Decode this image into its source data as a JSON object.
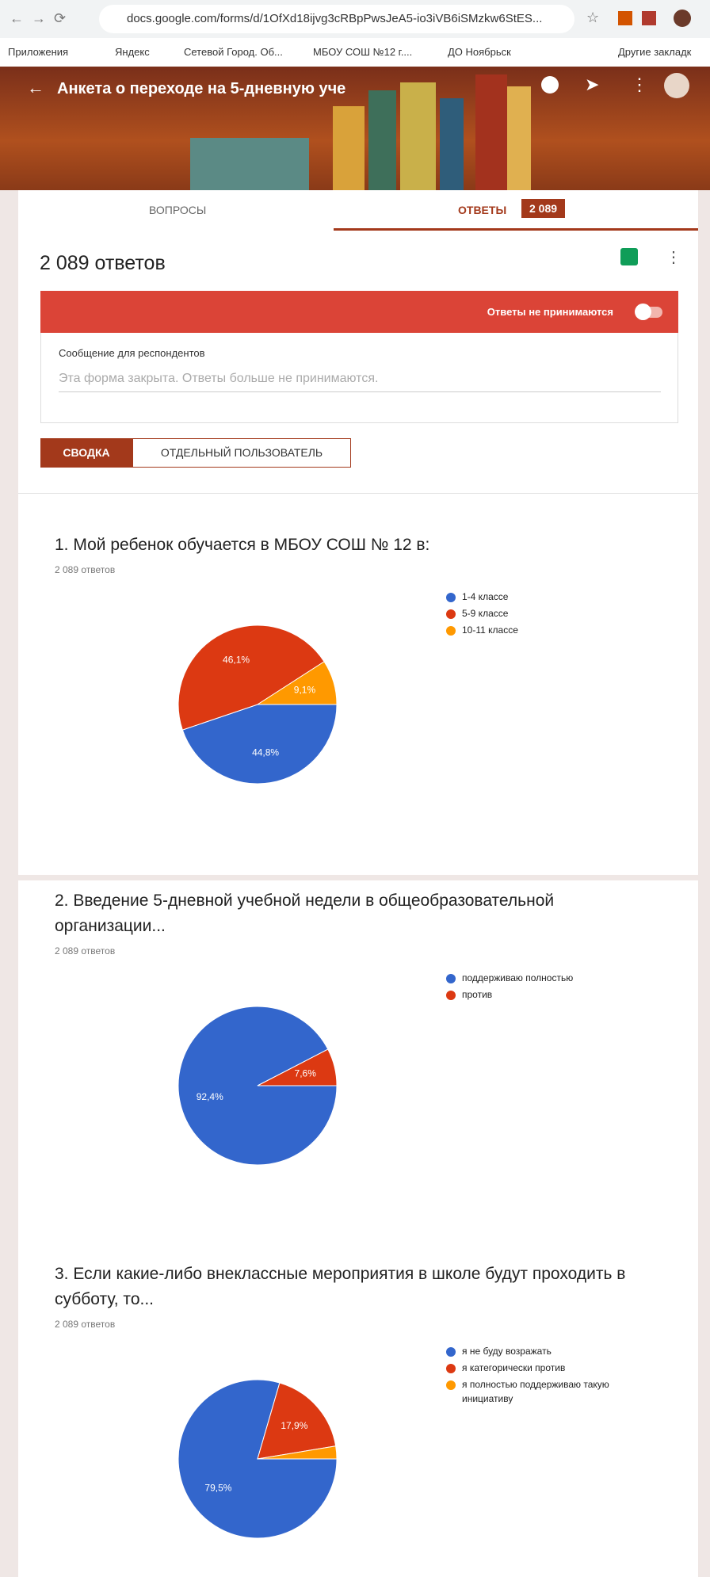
{
  "browser": {
    "url": "docs.google.com/forms/d/1OfXd18ijvg3cRBpPwsJeA5-io3iVB6iSMzkw6StES...",
    "bookmarks": [
      "Приложения",
      "Яндекс",
      "Сетевой Город. Об...",
      "МБОУ СОШ №12 г....",
      "ДО Ноябрьск",
      "Другие закладк"
    ]
  },
  "header": {
    "title": "Анкета о переходе на 5-дневную уче"
  },
  "tabs": {
    "questions": "ВОПРОСЫ",
    "responses": "ОТВЕТЫ",
    "badge": "2 089"
  },
  "summary": {
    "count": "2 089 ответов",
    "banner": "Ответы не принимаются",
    "message_label": "Сообщение для респондентов",
    "message": "Эта форма закрыта. Ответы больше не принимаются.",
    "buttons": [
      "СВОДКА",
      "ОТДЕЛЬНЫЙ ПОЛЬЗОВАТЕЛЬ"
    ]
  },
  "chart_data": [
    {
      "type": "pie",
      "title": "1. Мой ребенок обучается в МБОУ СОШ № 12 в:",
      "subtitle": "2 089 ответов",
      "categories": [
        "1-4 классе",
        "5-9 классе",
        "10-11 классе"
      ],
      "values": [
        44.8,
        46.1,
        9.1
      ],
      "value_labels": [
        "44,8%",
        "46,1%",
        "9,1%"
      ],
      "colors": [
        "#3366cc",
        "#dc3912",
        "#ff9900"
      ]
    },
    {
      "type": "pie",
      "title": "2. Введение 5-дневной учебной недели в общеобразовательной организации...",
      "subtitle": "2 089 ответов",
      "categories": [
        "поддерживаю полностью",
        "против"
      ],
      "values": [
        92.4,
        7.6
      ],
      "value_labels": [
        "92,4%",
        "7,6%"
      ],
      "colors": [
        "#3366cc",
        "#dc3912"
      ]
    },
    {
      "type": "pie",
      "title": "3. Если какие-либо внеклассные мероприятия в школе будут проходить в субботу, то...",
      "subtitle": "2 089 ответов",
      "categories": [
        "я не буду возражать",
        "я категорически против",
        "я полностью поддерживаю такую инициативу"
      ],
      "values": [
        79.5,
        17.9,
        2.6
      ],
      "value_labels": [
        "79,5%",
        "17,9%",
        null
      ],
      "colors": [
        "#3366cc",
        "#dc3912",
        "#ff9900"
      ]
    }
  ]
}
